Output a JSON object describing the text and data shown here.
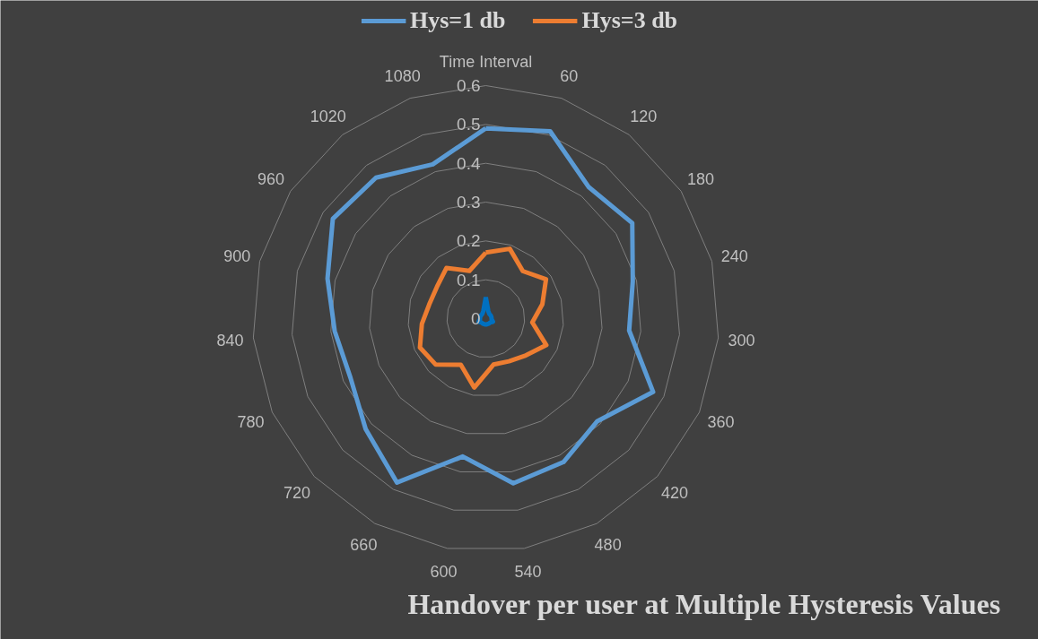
{
  "chart_data": {
    "type": "radar",
    "title": "Handover per user at Multiple Hysteresis Values",
    "categories": [
      "Time Interval",
      "60",
      "120",
      "180",
      "240",
      "300",
      "360",
      "420",
      "480",
      "540",
      "600",
      "660",
      "720",
      "780",
      "840",
      "900",
      "960",
      "1020",
      "1080"
    ],
    "series": [
      {
        "name": "Hys=1 db",
        "color": "#5b9bd5",
        "values": [
          0.49,
          0.51,
          0.43,
          0.45,
          0.39,
          0.37,
          0.47,
          0.39,
          0.42,
          0.43,
          0.36,
          0.48,
          0.42,
          0.38,
          0.39,
          0.42,
          0.47,
          0.46,
          0.42
        ]
      },
      {
        "name": "Hys=3 db",
        "color": "#ed7d31",
        "values": [
          0.17,
          0.19,
          0.155,
          0.185,
          0.15,
          0.12,
          0.17,
          0.14,
          0.125,
          0.12,
          0.18,
          0.135,
          0.175,
          0.185,
          0.165,
          0.15,
          0.15,
          0.165,
          0.13
        ]
      },
      {
        "color": "#0070c0",
        "values": [
          0.055,
          0.02,
          0.015,
          0.015,
          0.015,
          0.015,
          0.02,
          0.015,
          0.015,
          0.015,
          0.015,
          0.015,
          0.015,
          0.02,
          0.015,
          0.015,
          0.015,
          0.015,
          0.02
        ]
      }
    ],
    "ylim": [
      0,
      0.6
    ],
    "yticks": [
      0,
      0.1,
      0.2,
      0.3,
      0.4,
      0.5,
      0.6
    ],
    "grid": true,
    "legend": "top"
  }
}
